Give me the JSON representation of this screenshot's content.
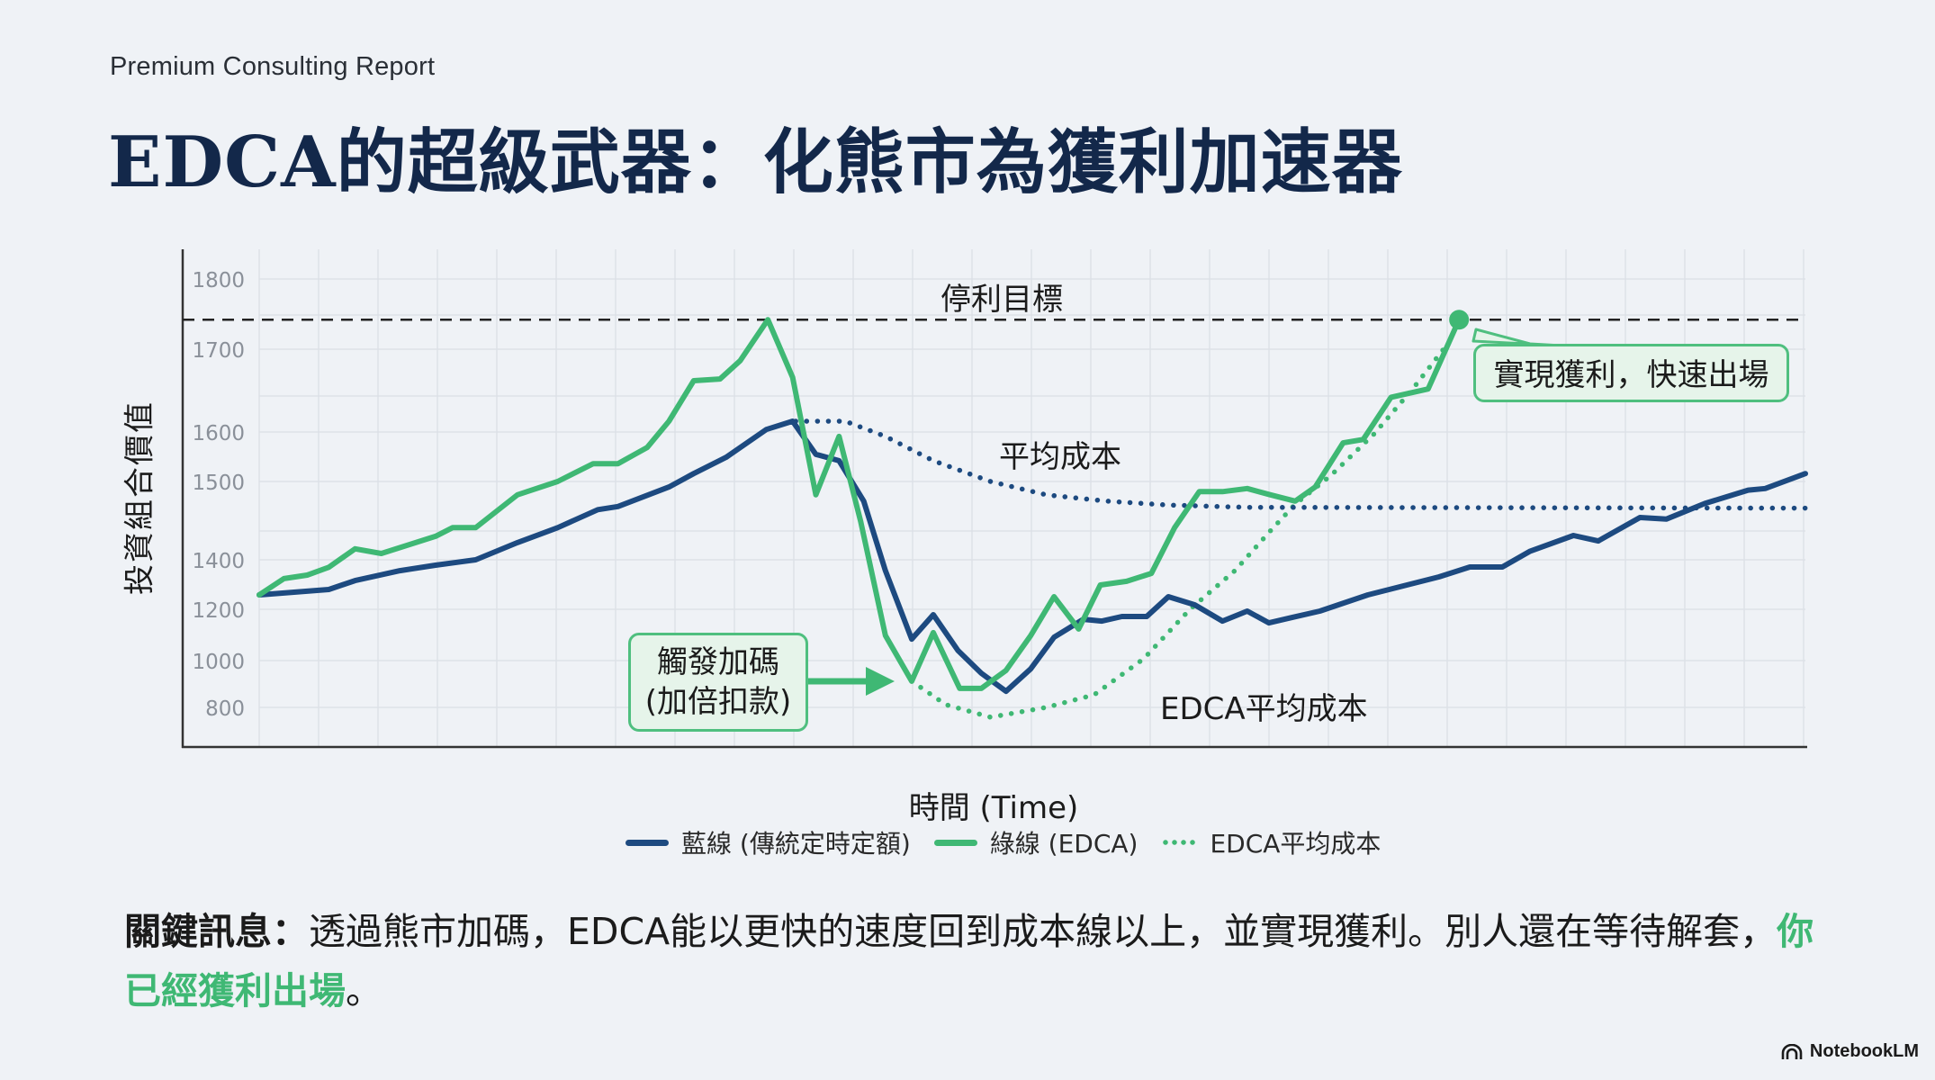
{
  "header": {
    "eyebrow": "Premium Consulting Report",
    "title": "EDCA的超級武器：化熊市為獲利加速器"
  },
  "chart_labels": {
    "y_axis": "投資組合價值",
    "x_axis": "時間 (Time)",
    "stop_target": "停利目標",
    "avg_cost": "平均成本",
    "edca_avg_cost": "EDCA平均成本",
    "trigger_line1": "觸發加碼",
    "trigger_line2": "(加倍扣款)",
    "profit_callout": "實現獲利，快速出場"
  },
  "legend": [
    {
      "label": "藍線 (傳統定時定額)",
      "color": "#1d4a80",
      "style": "solid"
    },
    {
      "label": "綠線 (EDCA)",
      "color": "#3fb874",
      "style": "solid"
    },
    {
      "label": "EDCA平均成本",
      "color": "#3fb874",
      "style": "dotted"
    }
  ],
  "message": {
    "lead": "關鍵訊息：",
    "body": "透過熊市加碼，EDCA能以更快的速度回到成本線以上，並實現獲利。別人還在等待解套，",
    "highlight": "你已經獲利出場",
    "tail": "。"
  },
  "brand": "NotebookLM",
  "colors": {
    "blue": "#1d4a80",
    "green": "#3fb874",
    "title": "#13284a",
    "background": "#eff2f6"
  },
  "chart_data": {
    "type": "line",
    "title": "EDCA的超級武器：化熊市為獲利加速器",
    "xlabel": "時間 (Time)",
    "ylabel": "投資組合價值",
    "x_range": [
      0,
      100
    ],
    "y_ticks": [
      800,
      1000,
      1200,
      1400,
      1500,
      1600,
      1700,
      1800
    ],
    "grid": true,
    "legend_position": "bottom",
    "reference_lines": [
      {
        "name": "停利目標",
        "value": 1742,
        "style": "dashed",
        "color": "#222222"
      }
    ],
    "series": [
      {
        "name": "藍線 (傳統定時定額)",
        "color": "#1d4a80",
        "style": "solid",
        "points": [
          [
            0,
            1258
          ],
          [
            4.5,
            1280
          ],
          [
            6.2,
            1316
          ],
          [
            9.1,
            1356
          ],
          [
            11.4,
            1378
          ],
          [
            14.0,
            1400
          ],
          [
            16.7,
            1422
          ],
          [
            19.3,
            1441
          ],
          [
            21.9,
            1464
          ],
          [
            23.2,
            1468
          ],
          [
            26.5,
            1493
          ],
          [
            28.1,
            1516
          ],
          [
            30.2,
            1549
          ],
          [
            32.8,
            1603
          ],
          [
            34.5,
            1613
          ],
          [
            36.0,
            1555
          ],
          [
            37.5,
            1542
          ],
          [
            39.1,
            1475
          ],
          [
            40.5,
            1356
          ],
          [
            42.2,
            1084
          ],
          [
            43.6,
            1179
          ],
          [
            45.2,
            1039
          ],
          [
            46.7,
            946
          ],
          [
            48.3,
            869
          ],
          [
            49.9,
            965
          ],
          [
            51.4,
            1091
          ],
          [
            53.3,
            1161
          ],
          [
            54.5,
            1154
          ],
          [
            55.8,
            1172
          ],
          [
            57.4,
            1172
          ],
          [
            58.8,
            1251
          ],
          [
            60.5,
            1218
          ],
          [
            62.3,
            1154
          ],
          [
            63.9,
            1193
          ],
          [
            65.3,
            1147
          ],
          [
            66.8,
            1168
          ],
          [
            68.6,
            1193
          ],
          [
            71.7,
            1258
          ],
          [
            76.3,
            1331
          ],
          [
            78.3,
            1371
          ],
          [
            80.4,
            1371
          ],
          [
            82.2,
            1411
          ],
          [
            85.0,
            1431
          ],
          [
            86.6,
            1424
          ],
          [
            89.3,
            1454
          ],
          [
            91.0,
            1452
          ],
          [
            93.5,
            1472
          ],
          [
            96.3,
            1489
          ],
          [
            97.4,
            1491
          ],
          [
            100,
            1516
          ]
        ]
      },
      {
        "name": "綠線 (EDCA)",
        "color": "#3fb874",
        "style": "solid",
        "points": [
          [
            0,
            1258
          ],
          [
            1.6,
            1324
          ],
          [
            3.1,
            1338
          ],
          [
            4.5,
            1370
          ],
          [
            6.2,
            1414
          ],
          [
            7.9,
            1408
          ],
          [
            11.4,
            1430
          ],
          [
            12.5,
            1441
          ],
          [
            14.0,
            1441
          ],
          [
            16.7,
            1483
          ],
          [
            19.3,
            1500
          ],
          [
            21.6,
            1536
          ],
          [
            23.2,
            1536
          ],
          [
            25.1,
            1569
          ],
          [
            26.5,
            1613
          ],
          [
            28.1,
            1662
          ],
          [
            29.8,
            1664
          ],
          [
            31.1,
            1686
          ],
          [
            32.9,
            1742
          ],
          [
            34.5,
            1666
          ],
          [
            36.0,
            1483
          ],
          [
            37.5,
            1591
          ],
          [
            38.9,
            1449
          ],
          [
            40.5,
            1098
          ],
          [
            42.2,
            912
          ],
          [
            43.6,
            1109
          ],
          [
            45.3,
            881
          ],
          [
            46.7,
            881
          ],
          [
            48.3,
            958
          ],
          [
            49.9,
            1098
          ],
          [
            51.4,
            1251
          ],
          [
            53.0,
            1123
          ],
          [
            54.4,
            1298
          ],
          [
            56.1,
            1313
          ],
          [
            57.7,
            1345
          ],
          [
            59.2,
            1441
          ],
          [
            60.8,
            1487
          ],
          [
            62.3,
            1487
          ],
          [
            63.9,
            1491
          ],
          [
            65.4,
            1483
          ],
          [
            67.0,
            1475
          ],
          [
            68.3,
            1493
          ],
          [
            70.1,
            1578
          ],
          [
            71.4,
            1585
          ],
          [
            73.2,
            1642
          ],
          [
            75.6,
            1652
          ],
          [
            77.6,
            1742
          ]
        ]
      },
      {
        "name": "平均成本",
        "color": "#1d4a80",
        "style": "dotted",
        "points": [
          [
            34.7,
            1613
          ],
          [
            37.9,
            1613
          ],
          [
            40.5,
            1591
          ],
          [
            43.6,
            1542
          ],
          [
            47.3,
            1500
          ],
          [
            50.9,
            1483
          ],
          [
            54.8,
            1475
          ],
          [
            58.7,
            1470
          ],
          [
            63.9,
            1467
          ],
          [
            100,
            1466
          ]
        ]
      },
      {
        "name": "EDCA平均成本",
        "color": "#3fb874",
        "style": "dotted",
        "points": [
          [
            42.2,
            912
          ],
          [
            44.4,
            812
          ],
          [
            47.3,
            758
          ],
          [
            50.9,
            800
          ],
          [
            54.0,
            854
          ],
          [
            57.2,
            1007
          ],
          [
            60.2,
            1200
          ],
          [
            63.1,
            1356
          ],
          [
            65.4,
            1437
          ],
          [
            67.0,
            1471
          ],
          [
            69.3,
            1512
          ],
          [
            72.1,
            1596
          ],
          [
            74.6,
            1652
          ],
          [
            76.7,
            1703
          ]
        ]
      }
    ],
    "annotations": [
      {
        "text": "停利目標",
        "x": 35,
        "y": 1775
      },
      {
        "text": "平均成本",
        "x": 38,
        "y": 1525
      },
      {
        "text": "EDCA平均成本",
        "x": 51,
        "y": 815
      },
      {
        "text": "觸發加碼 (加倍扣款)",
        "target": [
          42.2,
          912
        ]
      },
      {
        "text": "實現獲利，快速出場",
        "target": [
          77.6,
          1742
        ]
      }
    ]
  }
}
